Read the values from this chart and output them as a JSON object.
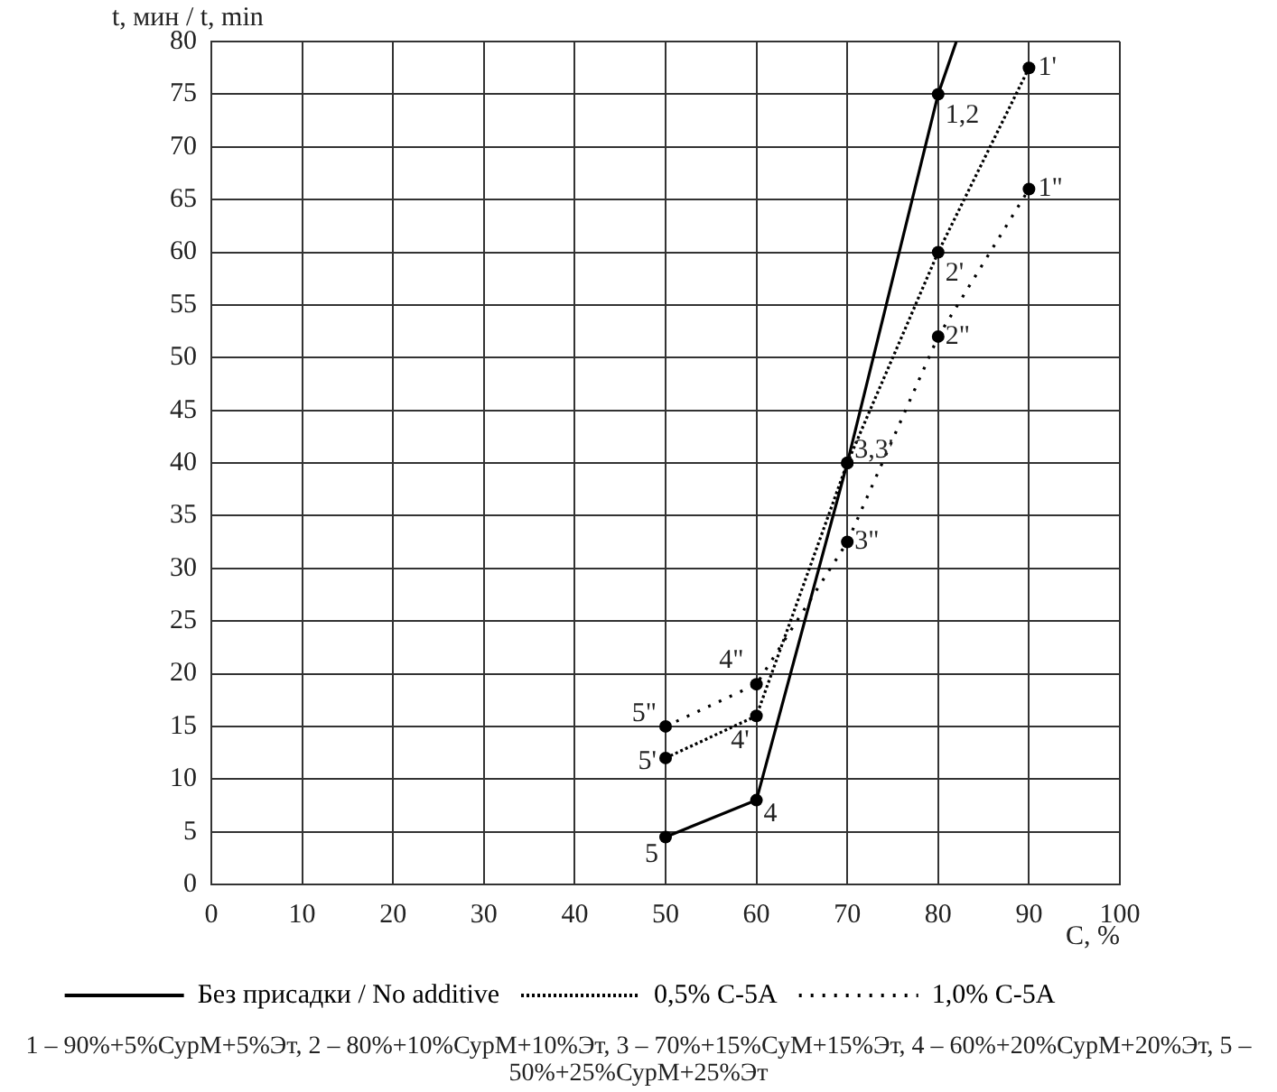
{
  "chart_data": {
    "type": "line",
    "ylabel": "t, мин / t, min",
    "xlabel": "C, %",
    "xlim": [
      0,
      100
    ],
    "xticks": [
      0,
      10,
      20,
      30,
      40,
      50,
      60,
      70,
      80,
      90,
      100
    ],
    "ylim": [
      0,
      80
    ],
    "yticks": [
      0,
      5,
      10,
      15,
      20,
      25,
      30,
      35,
      40,
      45,
      50,
      55,
      60,
      65,
      70,
      75,
      80
    ],
    "grid": true,
    "marker": "circle",
    "legend": "bottom",
    "series": [
      {
        "name": "Без присадки / No additive",
        "color": "#000000",
        "line_style": "solid",
        "x": [
          50,
          60,
          70,
          80
        ],
        "values": [
          4.5,
          8,
          40,
          75
        ]
      },
      {
        "color": "#000000",
        "line_style": "solid",
        "marker": "none",
        "x": [
          80,
          82
        ],
        "values": [
          75,
          80
        ]
      },
      {
        "name": "0,5% С-5А",
        "color": "#000000",
        "line_style": "dotted",
        "x": [
          50,
          60,
          70,
          80,
          90
        ],
        "values": [
          12,
          16,
          40,
          60,
          77.5
        ]
      },
      {
        "name": "1,0% С-5А",
        "color": "#000000",
        "line_style": "dotted",
        "x": [
          50,
          60,
          70,
          80,
          90
        ],
        "values": [
          15,
          19,
          32.5,
          52,
          66
        ]
      }
    ],
    "annotations": [
      {
        "text": "1,2",
        "x": 80,
        "y": 75
      },
      {
        "text": "1'",
        "x": 90,
        "y": 77.5
      },
      {
        "text": "1\"",
        "x": 90,
        "y": 66
      },
      {
        "text": "2'",
        "x": 80,
        "y": 60
      },
      {
        "text": "2\"",
        "x": 80,
        "y": 52
      },
      {
        "text": "3,3'",
        "x": 70,
        "y": 40
      },
      {
        "text": "3\"",
        "x": 70,
        "y": 32.5
      },
      {
        "text": "4\"",
        "x": 60,
        "y": 19
      },
      {
        "text": "4'",
        "x": 60,
        "y": 16
      },
      {
        "text": "4",
        "x": 60,
        "y": 8
      },
      {
        "text": "5\"",
        "x": 50,
        "y": 15
      },
      {
        "text": "5'",
        "x": 50,
        "y": 12
      },
      {
        "text": "5",
        "x": 50,
        "y": 4.5
      },
      "1 – 90%+5%СурМ+5%Эт, 2 – 80%+10%СурМ+10%Эт, 3 – 70%+15%СуМ+15%Эт, 4 – 60%+20%СурМ+20%Эт, 5 – 50%+25%СурМ+25%Эт"
    ]
  }
}
